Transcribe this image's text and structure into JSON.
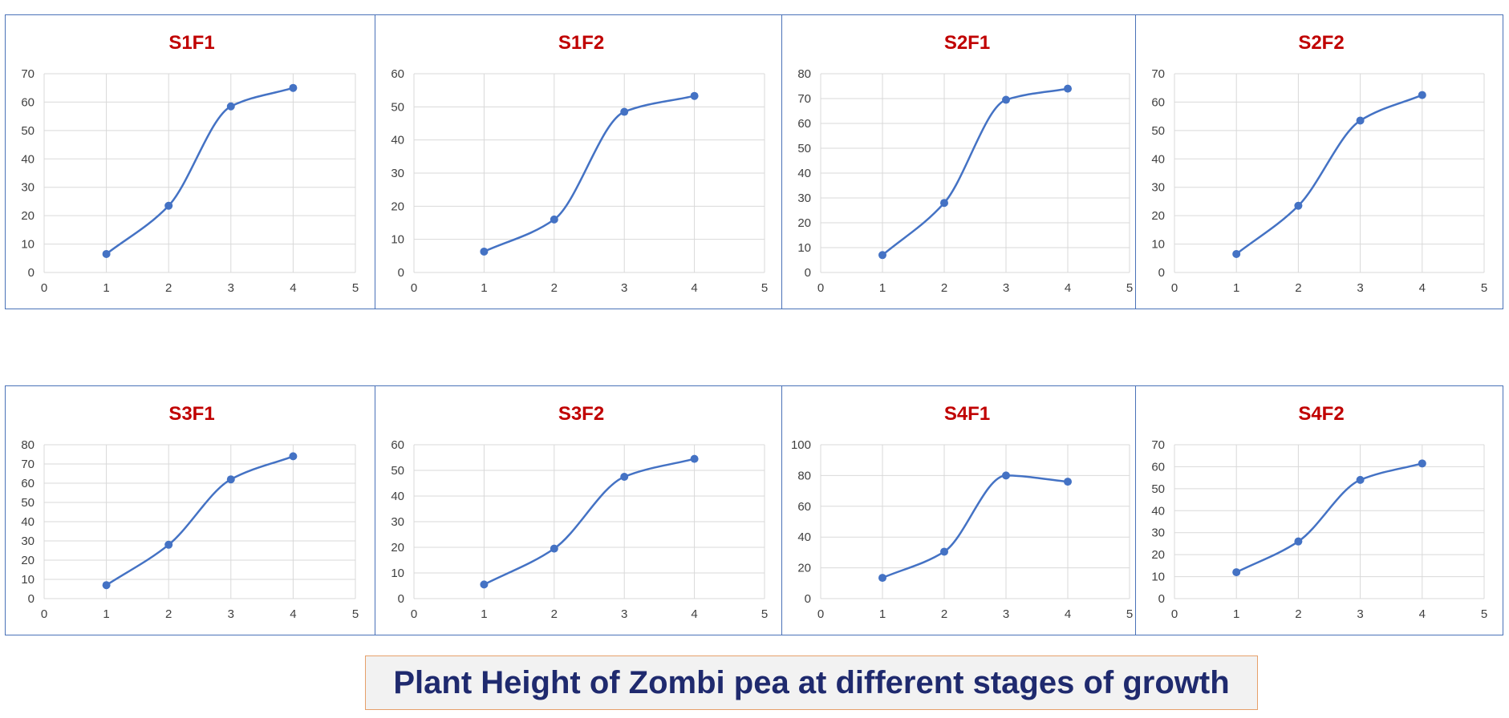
{
  "caption": "Plant Height of Zombi pea at different stages of growth",
  "colors": {
    "series": "#4472c4",
    "title": "#c00000",
    "border": "#4a72b8",
    "grid": "#d9d9d9",
    "caption_text": "#1f2a6e",
    "caption_border": "#e6a06a",
    "caption_bg": "#f2f2f2"
  },
  "chart_data": [
    {
      "type": "line",
      "title": "S1F1",
      "x": [
        1,
        2,
        3,
        4
      ],
      "values": [
        6.5,
        23.5,
        58.5,
        65
      ],
      "xlim": [
        0,
        5
      ],
      "ylim": [
        0,
        70
      ],
      "yticks": [
        0,
        10,
        20,
        30,
        40,
        50,
        60,
        70
      ],
      "xticks": [
        0,
        1,
        2,
        3,
        4,
        5
      ],
      "grid": true,
      "smooth": true
    },
    {
      "type": "line",
      "title": "S1F2",
      "x": [
        1,
        2,
        3,
        4
      ],
      "values": [
        6.3,
        16,
        48.5,
        53.3
      ],
      "xlim": [
        0,
        5
      ],
      "ylim": [
        0,
        60
      ],
      "yticks": [
        0,
        10,
        20,
        30,
        40,
        50,
        60
      ],
      "xticks": [
        0,
        1,
        2,
        3,
        4,
        5
      ],
      "grid": true,
      "smooth": true
    },
    {
      "type": "line",
      "title": "S2F1",
      "x": [
        1,
        2,
        3,
        4
      ],
      "values": [
        7,
        28,
        69.5,
        74
      ],
      "xlim": [
        0,
        5
      ],
      "ylim": [
        0,
        80
      ],
      "yticks": [
        0,
        10,
        20,
        30,
        40,
        50,
        60,
        70,
        80
      ],
      "xticks": [
        0,
        1,
        2,
        3,
        4,
        5
      ],
      "grid": true,
      "smooth": true
    },
    {
      "type": "line",
      "title": "S2F2",
      "x": [
        1,
        2,
        3,
        4
      ],
      "values": [
        6.5,
        23.5,
        53.5,
        62.5
      ],
      "xlim": [
        0,
        5
      ],
      "ylim": [
        0,
        70
      ],
      "yticks": [
        0,
        10,
        20,
        30,
        40,
        50,
        60,
        70
      ],
      "xticks": [
        0,
        1,
        2,
        3,
        4,
        5
      ],
      "grid": true,
      "smooth": true
    },
    {
      "type": "line",
      "title": "S3F1",
      "x": [
        1,
        2,
        3,
        4
      ],
      "values": [
        7,
        28,
        62,
        74
      ],
      "xlim": [
        0,
        5
      ],
      "ylim": [
        0,
        80
      ],
      "yticks": [
        0,
        10,
        20,
        30,
        40,
        50,
        60,
        70,
        80
      ],
      "xticks": [
        0,
        1,
        2,
        3,
        4,
        5
      ],
      "grid": true,
      "smooth": true
    },
    {
      "type": "line",
      "title": "S3F2",
      "x": [
        1,
        2,
        3,
        4
      ],
      "values": [
        5.5,
        19.5,
        47.5,
        54.5
      ],
      "xlim": [
        0,
        5
      ],
      "ylim": [
        0,
        60
      ],
      "yticks": [
        0,
        10,
        20,
        30,
        40,
        50,
        60
      ],
      "xticks": [
        0,
        1,
        2,
        3,
        4,
        5
      ],
      "grid": true,
      "smooth": true
    },
    {
      "type": "line",
      "title": "S4F1",
      "x": [
        1,
        2,
        3,
        4
      ],
      "values": [
        13.5,
        30.5,
        80,
        76
      ],
      "xlim": [
        0,
        5
      ],
      "ylim": [
        0,
        100
      ],
      "yticks": [
        0,
        20,
        40,
        60,
        80,
        100
      ],
      "xticks": [
        0,
        1,
        2,
        3,
        4,
        5
      ],
      "grid": true,
      "smooth": true
    },
    {
      "type": "line",
      "title": "S4F2",
      "x": [
        1,
        2,
        3,
        4
      ],
      "values": [
        12,
        26,
        54,
        61.5
      ],
      "xlim": [
        0,
        5
      ],
      "ylim": [
        0,
        70
      ],
      "yticks": [
        0,
        10,
        20,
        30,
        40,
        50,
        60,
        70
      ],
      "xticks": [
        0,
        1,
        2,
        3,
        4,
        5
      ],
      "grid": true,
      "smooth": true
    }
  ]
}
